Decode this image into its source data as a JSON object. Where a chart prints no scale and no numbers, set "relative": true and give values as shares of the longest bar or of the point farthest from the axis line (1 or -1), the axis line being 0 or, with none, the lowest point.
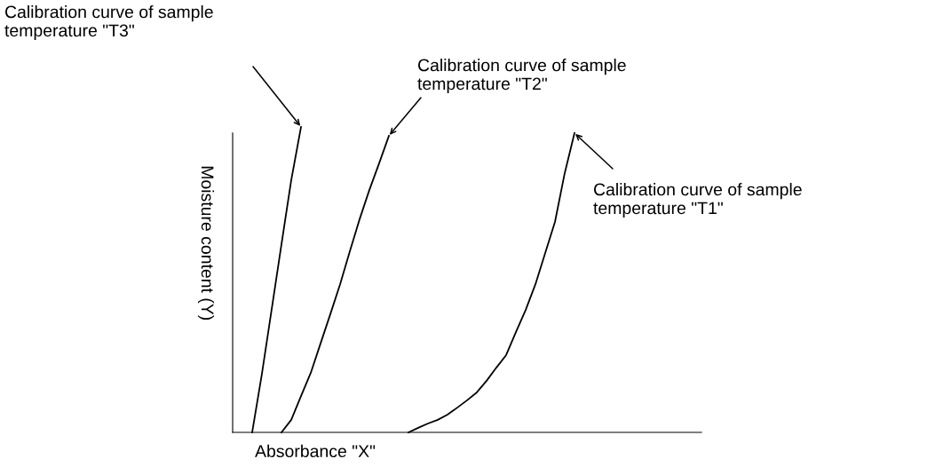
{
  "chart_data": {
    "type": "line",
    "relative": true,
    "xlabel": "Absorbance \"X\"",
    "ylabel": "Moisture content (Y)",
    "tick_labels": false,
    "categories": [
      null,
      null,
      null,
      null,
      null,
      null,
      null,
      null,
      null,
      null,
      null,
      null,
      null,
      null,
      null,
      null,
      null,
      null,
      null,
      null,
      null,
      null,
      null,
      null,
      null,
      null,
      null,
      null,
      null,
      null,
      null,
      null,
      null,
      null,
      null,
      null,
      null,
      null,
      null,
      null,
      null,
      null,
      null,
      null,
      null,
      null,
      null,
      null,
      null
    ],
    "series": [
      {
        "color": "#000000",
        "values": [
          null,
          null,
          0,
          0.192,
          0.404,
          0.616,
          0.826,
          1,
          null,
          null,
          null,
          null,
          null,
          null,
          null,
          null,
          null,
          null,
          null,
          null,
          null,
          null,
          null,
          null,
          null,
          null,
          null,
          null,
          null,
          null,
          null,
          null,
          null,
          null,
          null,
          null,
          null,
          null,
          null,
          null,
          null,
          null,
          null,
          null,
          null,
          null,
          null,
          null,
          null
        ]
      },
      {
        "color": "#000000",
        "values": [
          null,
          null,
          null,
          null,
          null,
          0,
          0.041,
          0.119,
          0.195,
          0.291,
          0.387,
          0.485,
          0.593,
          0.698,
          0.794,
          0.881,
          0.971,
          null,
          null,
          null,
          null,
          null,
          null,
          null,
          null,
          null,
          null,
          null,
          null,
          null,
          null,
          null,
          null,
          null,
          null,
          null,
          null,
          null,
          null,
          null,
          null,
          null,
          null,
          null,
          null,
          null,
          null,
          null,
          null
        ]
      },
      {
        "color": "#000000",
        "values": [
          null,
          null,
          null,
          null,
          null,
          null,
          null,
          null,
          null,
          null,
          null,
          null,
          null,
          null,
          null,
          null,
          null,
          null,
          0,
          0.015,
          0.029,
          0.041,
          0.058,
          0.081,
          0.105,
          0.131,
          0.169,
          0.212,
          0.253,
          0.328,
          0.401,
          0.485,
          0.587,
          0.689,
          0.849,
          0.98,
          null,
          null,
          null,
          null,
          null,
          null,
          null,
          null,
          null,
          null,
          null,
          null,
          null
        ]
      }
    ],
    "annotations": [
      "Calibration curve of sample\ntemperature \"T3\"",
      "Calibration curve of sample\ntemperature \"T2\"",
      "Calibration curve of sample\ntemperature \"T1\""
    ]
  }
}
